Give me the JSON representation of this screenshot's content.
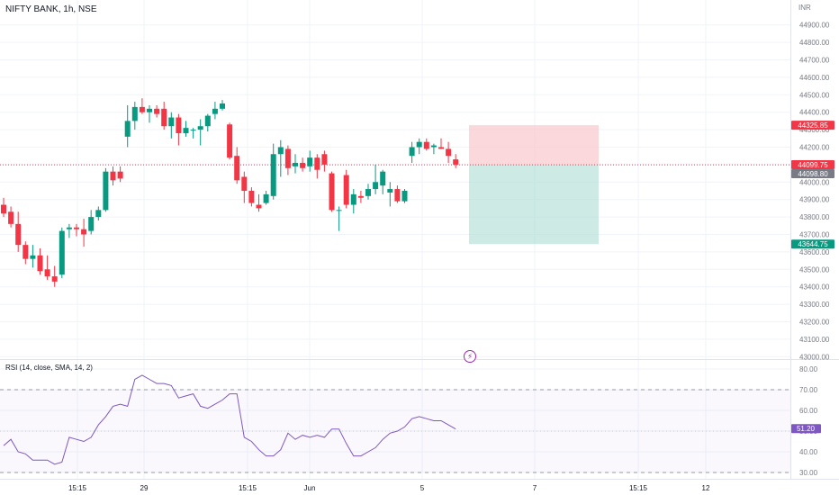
{
  "header": {
    "symbol": "NIFTY BANK, 1h, NSE",
    "currency": "INR"
  },
  "rsi_title": "RSI (14, close, SMA, 14, 2)",
  "colors": {
    "up": "#089981",
    "down": "#f23645",
    "rsi": "#7e57c2",
    "grid": "#f0f3fa",
    "axis_text": "#787b86"
  },
  "price_axis": {
    "ticks": [
      "44900.00",
      "44800.00",
      "44700.00",
      "44600.00",
      "44500.00",
      "44400.00",
      "44300.00",
      "44200.00",
      "44100.00",
      "44000.00",
      "43900.00",
      "43800.00",
      "43700.00",
      "43600.00",
      "43500.00",
      "43400.00",
      "43300.00",
      "43200.00",
      "43100.00",
      "43000.00"
    ]
  },
  "rsi_axis": {
    "ticks": [
      "80.00",
      "70.00",
      "60.00",
      "50.00",
      "40.00",
      "30.00"
    ]
  },
  "time_axis": {
    "labels": [
      "15:15",
      "29",
      "15:15",
      "Jun",
      "5",
      "7",
      "15:15",
      "12"
    ]
  },
  "price_labels": {
    "target_top": "44325.85",
    "entry": "44099.75",
    "current": "44098.80",
    "stop_bottom": "43644.75",
    "rsi_value": "51.20"
  },
  "chart_data": [
    {
      "type": "candlestick",
      "title": "NIFTY BANK, 1h, NSE",
      "y_unit": "INR",
      "ylim": [
        42950,
        44950
      ],
      "x": [
        "15:15",
        "29",
        "15:15",
        "Jun",
        "5"
      ],
      "candles": [
        {
          "o": 43870,
          "h": 43910,
          "l": 43800,
          "c": 43820
        },
        {
          "o": 43830,
          "h": 43860,
          "l": 43740,
          "c": 43760
        },
        {
          "o": 43760,
          "h": 43830,
          "l": 43600,
          "c": 43640
        },
        {
          "o": 43640,
          "h": 43660,
          "l": 43530,
          "c": 43560
        },
        {
          "o": 43560,
          "h": 43640,
          "l": 43510,
          "c": 43580
        },
        {
          "o": 43580,
          "h": 43620,
          "l": 43470,
          "c": 43490
        },
        {
          "o": 43500,
          "h": 43580,
          "l": 43440,
          "c": 43460
        },
        {
          "o": 43460,
          "h": 43520,
          "l": 43400,
          "c": 43430
        },
        {
          "o": 43470,
          "h": 43740,
          "l": 43450,
          "c": 43720
        },
        {
          "o": 43730,
          "h": 43760,
          "l": 43680,
          "c": 43740
        },
        {
          "o": 43740,
          "h": 43760,
          "l": 43690,
          "c": 43730
        },
        {
          "o": 43730,
          "h": 43790,
          "l": 43630,
          "c": 43700
        },
        {
          "o": 43720,
          "h": 43840,
          "l": 43700,
          "c": 43800
        },
        {
          "o": 43800,
          "h": 43860,
          "l": 43780,
          "c": 43840
        },
        {
          "o": 43840,
          "h": 44080,
          "l": 43830,
          "c": 44060
        },
        {
          "o": 44060,
          "h": 44090,
          "l": 43980,
          "c": 44010
        },
        {
          "o": 44060,
          "h": 44090,
          "l": 44000,
          "c": 44020
        },
        {
          "o": 44260,
          "h": 44440,
          "l": 44200,
          "c": 44350
        },
        {
          "o": 44350,
          "h": 44460,
          "l": 44300,
          "c": 44430
        },
        {
          "o": 44430,
          "h": 44480,
          "l": 44390,
          "c": 44400
        },
        {
          "o": 44400,
          "h": 44440,
          "l": 44340,
          "c": 44420
        },
        {
          "o": 44420,
          "h": 44440,
          "l": 44370,
          "c": 44390
        },
        {
          "o": 44420,
          "h": 44460,
          "l": 44300,
          "c": 44320
        },
        {
          "o": 44320,
          "h": 44400,
          "l": 44250,
          "c": 44370
        },
        {
          "o": 44370,
          "h": 44390,
          "l": 44210,
          "c": 44280
        },
        {
          "o": 44280,
          "h": 44350,
          "l": 44260,
          "c": 44310
        },
        {
          "o": 44300,
          "h": 44310,
          "l": 44250,
          "c": 44300
        },
        {
          "o": 44300,
          "h": 44360,
          "l": 44210,
          "c": 44320
        },
        {
          "o": 44320,
          "h": 44390,
          "l": 44290,
          "c": 44380
        },
        {
          "o": 44390,
          "h": 44460,
          "l": 44360,
          "c": 44420
        },
        {
          "o": 44420,
          "h": 44470,
          "l": 44410,
          "c": 44450
        },
        {
          "o": 44330,
          "h": 44340,
          "l": 44130,
          "c": 44140
        },
        {
          "o": 44150,
          "h": 44200,
          "l": 43990,
          "c": 44010
        },
        {
          "o": 44030,
          "h": 44060,
          "l": 43880,
          "c": 43950
        },
        {
          "o": 43950,
          "h": 43970,
          "l": 43860,
          "c": 43880
        },
        {
          "o": 43870,
          "h": 43930,
          "l": 43830,
          "c": 43850
        },
        {
          "o": 43880,
          "h": 43950,
          "l": 43870,
          "c": 43930
        },
        {
          "o": 43920,
          "h": 44220,
          "l": 43900,
          "c": 44160
        },
        {
          "o": 44160,
          "h": 44240,
          "l": 44030,
          "c": 44200
        },
        {
          "o": 44190,
          "h": 44210,
          "l": 44040,
          "c": 44080
        },
        {
          "o": 44090,
          "h": 44160,
          "l": 44050,
          "c": 44110
        },
        {
          "o": 44110,
          "h": 44140,
          "l": 44060,
          "c": 44080
        },
        {
          "o": 44090,
          "h": 44180,
          "l": 44060,
          "c": 44140
        },
        {
          "o": 44140,
          "h": 44160,
          "l": 44020,
          "c": 44070
        },
        {
          "o": 44160,
          "h": 44180,
          "l": 44060,
          "c": 44100
        },
        {
          "o": 44050,
          "h": 44060,
          "l": 43830,
          "c": 43840
        },
        {
          "o": 43840,
          "h": 43860,
          "l": 43720,
          "c": 43840
        },
        {
          "o": 44040,
          "h": 44070,
          "l": 43850,
          "c": 43870
        },
        {
          "o": 43870,
          "h": 43960,
          "l": 43820,
          "c": 43930
        },
        {
          "o": 43920,
          "h": 43950,
          "l": 43880,
          "c": 43910
        },
        {
          "o": 43920,
          "h": 43990,
          "l": 43900,
          "c": 43960
        },
        {
          "o": 43960,
          "h": 44100,
          "l": 43930,
          "c": 44000
        },
        {
          "o": 43980,
          "h": 44070,
          "l": 43930,
          "c": 44060
        },
        {
          "o": 43940,
          "h": 44000,
          "l": 43860,
          "c": 43960
        },
        {
          "o": 43960,
          "h": 43980,
          "l": 43880,
          "c": 43890
        },
        {
          "o": 43890,
          "h": 43960,
          "l": 43880,
          "c": 43950
        },
        {
          "o": 44150,
          "h": 44230,
          "l": 44110,
          "c": 44200
        },
        {
          "o": 44200,
          "h": 44250,
          "l": 44160,
          "c": 44230
        },
        {
          "o": 44230,
          "h": 44250,
          "l": 44180,
          "c": 44190
        },
        {
          "o": 44200,
          "h": 44220,
          "l": 44160,
          "c": 44210
        },
        {
          "o": 44200,
          "h": 44250,
          "l": 44190,
          "c": 44190
        },
        {
          "o": 44190,
          "h": 44230,
          "l": 44110,
          "c": 44150
        },
        {
          "o": 44130,
          "h": 44160,
          "l": 44080,
          "c": 44100
        }
      ],
      "position": {
        "target": 44325.85,
        "entry": 44099.75,
        "stop": 43644.75
      },
      "current_price": 44098.8
    },
    {
      "type": "line",
      "title": "RSI (14, close, SMA, 14, 2)",
      "ylim": [
        28,
        83
      ],
      "levels": [
        70,
        30
      ],
      "series": [
        {
          "values": [
            43,
            46,
            40,
            39,
            36,
            36,
            36,
            34,
            35,
            47,
            46,
            45,
            47,
            53,
            57,
            62,
            63,
            62,
            75,
            77,
            75,
            73,
            73,
            72,
            66,
            67,
            68,
            62,
            61,
            63,
            65,
            68,
            68,
            47,
            45,
            41,
            38,
            38,
            41,
            49,
            46,
            48,
            47,
            48,
            47,
            51,
            51,
            44,
            38,
            38,
            40,
            42,
            46,
            49,
            50,
            52,
            56,
            57,
            56,
            55,
            55,
            53,
            51
          ]
        }
      ],
      "last_value": 51.2
    }
  ]
}
